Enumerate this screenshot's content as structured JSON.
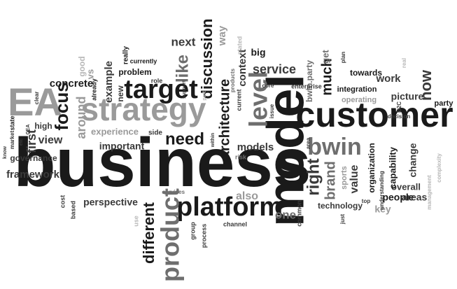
{
  "palette": {
    "black": "#1a1a1a",
    "dark": "#3a3a3a",
    "mid": "#6e6e6e",
    "light": "#9a9a9a",
    "pale": "#b8b8b8"
  },
  "words": [
    {
      "text": "business",
      "weight": 100,
      "tone": "black",
      "dir": "h"
    },
    {
      "text": "customer",
      "weight": 70,
      "tone": "black",
      "dir": "h"
    },
    {
      "text": "model",
      "weight": 72,
      "tone": "black",
      "dir": "v"
    },
    {
      "text": "EA",
      "weight": 58,
      "tone": "light",
      "dir": "h"
    },
    {
      "text": "strategy",
      "weight": 48,
      "tone": "light",
      "dir": "h"
    },
    {
      "text": "target",
      "weight": 40,
      "tone": "black",
      "dir": "h"
    },
    {
      "text": "platform",
      "weight": 40,
      "tone": "black",
      "dir": "h"
    },
    {
      "text": "product",
      "weight": 38,
      "tone": "mid",
      "dir": "v"
    },
    {
      "text": "level",
      "weight": 38,
      "tone": "mid",
      "dir": "v"
    },
    {
      "text": "bwin",
      "weight": 34,
      "tone": "mid",
      "dir": "h"
    },
    {
      "text": "focus",
      "weight": 28,
      "tone": "black",
      "dir": "v"
    },
    {
      "text": "need",
      "weight": 26,
      "tone": "black",
      "dir": "h"
    },
    {
      "text": "architecture",
      "weight": 22,
      "tone": "black",
      "dir": "v"
    },
    {
      "text": "discussion",
      "weight": 22,
      "tone": "black",
      "dir": "v"
    },
    {
      "text": "like",
      "weight": 26,
      "tone": "mid",
      "dir": "v"
    },
    {
      "text": "different",
      "weight": 24,
      "tone": "black",
      "dir": "v"
    },
    {
      "text": "right",
      "weight": 24,
      "tone": "dark",
      "dir": "v"
    },
    {
      "text": "much",
      "weight": 20,
      "tone": "black",
      "dir": "v"
    },
    {
      "text": "now",
      "weight": 22,
      "tone": "dark",
      "dir": "v"
    },
    {
      "text": "brand",
      "weight": 20,
      "tone": "mid",
      "dir": "v"
    },
    {
      "text": "service",
      "weight": 18,
      "tone": "dark",
      "dir": "h"
    },
    {
      "text": "around",
      "weight": 20,
      "tone": "light",
      "dir": "v"
    },
    {
      "text": "first",
      "weight": 20,
      "tone": "dark",
      "dir": "v"
    },
    {
      "text": "next",
      "weight": 18,
      "tone": "dark",
      "dir": "h"
    },
    {
      "text": "also",
      "weight": 18,
      "tone": "light",
      "dir": "h"
    },
    {
      "text": "one",
      "weight": 18,
      "tone": "mid",
      "dir": "h"
    },
    {
      "text": "way",
      "weight": 16,
      "tone": "light",
      "dir": "v"
    },
    {
      "text": "context",
      "weight": 16,
      "tone": "dark",
      "dir": "v"
    },
    {
      "text": "view",
      "weight": 16,
      "tone": "dark",
      "dir": "h"
    },
    {
      "text": "framework",
      "weight": 16,
      "tone": "dark",
      "dir": "h"
    },
    {
      "text": "perspective",
      "weight": 14,
      "tone": "dark",
      "dir": "h"
    },
    {
      "text": "example",
      "weight": 16,
      "tone": "dark",
      "dir": "v"
    },
    {
      "text": "models",
      "weight": 16,
      "tone": "dark",
      "dir": "h"
    },
    {
      "text": "value",
      "weight": 16,
      "tone": "dark",
      "dir": "v"
    },
    {
      "text": "work",
      "weight": 15,
      "tone": "dark",
      "dir": "h"
    },
    {
      "text": "big",
      "weight": 15,
      "tone": "black",
      "dir": "h"
    },
    {
      "text": "concrete",
      "weight": 15,
      "tone": "black",
      "dir": "h"
    },
    {
      "text": "important",
      "weight": 14,
      "tone": "dark",
      "dir": "h"
    },
    {
      "text": "experience",
      "weight": 13,
      "tone": "light",
      "dir": "h"
    },
    {
      "text": "people",
      "weight": 14,
      "tone": "black",
      "dir": "h"
    },
    {
      "text": "picture",
      "weight": 14,
      "tone": "dark",
      "dir": "h"
    },
    {
      "text": "change",
      "weight": 14,
      "tone": "dark",
      "dir": "v"
    },
    {
      "text": "key",
      "weight": 14,
      "tone": "light",
      "dir": "h"
    },
    {
      "text": "areas",
      "weight": 14,
      "tone": "dark",
      "dir": "h"
    },
    {
      "text": "overall",
      "weight": 13,
      "tone": "dark",
      "dir": "h"
    },
    {
      "text": "capability",
      "weight": 13,
      "tone": "black",
      "dir": "v"
    },
    {
      "text": "organization",
      "weight": 12,
      "tone": "black",
      "dir": "v"
    },
    {
      "text": "problem",
      "weight": 12,
      "tone": "black",
      "dir": "h"
    },
    {
      "text": "towards",
      "weight": 12,
      "tone": "black",
      "dir": "h"
    },
    {
      "text": "get",
      "weight": 14,
      "tone": "mid",
      "dir": "v"
    },
    {
      "text": "governance",
      "weight": 12,
      "tone": "dark",
      "dir": "h"
    },
    {
      "text": "technology",
      "weight": 12,
      "tone": "dark",
      "dir": "h"
    },
    {
      "text": "bwin.party",
      "weight": 13,
      "tone": "mid",
      "dir": "v"
    },
    {
      "text": "high",
      "weight": 12,
      "tone": "dark",
      "dir": "h"
    },
    {
      "text": "vs",
      "weight": 14,
      "tone": "light",
      "dir": "v"
    },
    {
      "text": "new",
      "weight": 13,
      "tone": "dark",
      "dir": "v"
    },
    {
      "text": "integration",
      "weight": 11,
      "tone": "black",
      "dir": "h"
    },
    {
      "text": "operating",
      "weight": 11,
      "tone": "light",
      "dir": "h"
    },
    {
      "text": "party",
      "weight": 11,
      "tone": "black",
      "dir": "h"
    },
    {
      "text": "sports",
      "weight": 11,
      "tone": "light",
      "dir": "v"
    },
    {
      "text": "good",
      "weight": 12,
      "tone": "pale",
      "dir": "v"
    },
    {
      "text": "really",
      "weight": 10,
      "tone": "black",
      "dir": "v"
    },
    {
      "text": "currently",
      "weight": 9,
      "tone": "black",
      "dir": "h"
    },
    {
      "text": "role",
      "weight": 9,
      "tone": "dark",
      "dir": "h"
    },
    {
      "text": "state",
      "weight": 9,
      "tone": "black",
      "dir": "v"
    },
    {
      "text": "already",
      "weight": 9,
      "tone": "black",
      "dir": "v"
    },
    {
      "text": "enterprise",
      "weight": 9,
      "tone": "dark",
      "dir": "h"
    },
    {
      "text": "B2C",
      "weight": 8,
      "tone": "dark",
      "dir": "v"
    },
    {
      "text": "decision",
      "weight": 8,
      "tone": "dark",
      "dir": "h"
    },
    {
      "text": "top",
      "weight": 8,
      "tone": "dark",
      "dir": "h"
    },
    {
      "text": "side",
      "weight": 10,
      "tone": "dark",
      "dir": "h"
    },
    {
      "text": "stated",
      "weight": 9,
      "tone": "pale",
      "dir": "v"
    },
    {
      "text": "products",
      "weight": 8,
      "tone": "mid",
      "dir": "v"
    },
    {
      "text": "current",
      "weight": 9,
      "tone": "dark",
      "dir": "v"
    },
    {
      "text": "core",
      "weight": 8,
      "tone": "dark",
      "dir": "h"
    },
    {
      "text": "issue",
      "weight": 8,
      "tone": "dark",
      "dir": "v"
    },
    {
      "text": "risk",
      "weight": 9,
      "tone": "mid",
      "dir": "h"
    },
    {
      "text": "process",
      "weight": 9,
      "tone": "dark",
      "dir": "v"
    },
    {
      "text": "group",
      "weight": 9,
      "tone": "dark",
      "dir": "v"
    },
    {
      "text": "channel",
      "weight": 9,
      "tone": "dark",
      "dir": "h"
    },
    {
      "text": "common",
      "weight": 9,
      "tone": "dark",
      "dir": "v"
    },
    {
      "text": "understanding",
      "weight": 8,
      "tone": "dark",
      "dir": "v"
    },
    {
      "text": "management",
      "weight": 8,
      "tone": "pale",
      "dir": "v"
    },
    {
      "text": "complexity",
      "weight": 8,
      "tone": "pale",
      "dir": "v"
    },
    {
      "text": "plan",
      "weight": 8,
      "tone": "dark",
      "dir": "v"
    },
    {
      "text": "real",
      "weight": 8,
      "tone": "pale",
      "dir": "v"
    },
    {
      "text": "area",
      "weight": 8,
      "tone": "dark",
      "dir": "v"
    },
    {
      "text": "based",
      "weight": 9,
      "tone": "dark",
      "dir": "v"
    },
    {
      "text": "cost",
      "weight": 9,
      "tone": "dark",
      "dir": "v"
    },
    {
      "text": "use",
      "weight": 9,
      "tone": "pale",
      "dir": "v"
    },
    {
      "text": "services",
      "weight": 8,
      "tone": "mid",
      "dir": "h"
    },
    {
      "text": "just",
      "weight": 8,
      "tone": "dark",
      "dir": "v"
    },
    {
      "text": "within",
      "weight": 7,
      "tone": "dark",
      "dir": "v"
    },
    {
      "text": "part",
      "weight": 7,
      "tone": "pale",
      "dir": "v"
    },
    {
      "text": "support",
      "weight": 7,
      "tone": "dark",
      "dir": "v"
    },
    {
      "text": "clear",
      "weight": 8,
      "tone": "dark",
      "dir": "v"
    },
    {
      "text": "market",
      "weight": 8,
      "tone": "dark",
      "dir": "v"
    },
    {
      "text": "know",
      "weight": 7,
      "tone": "dark",
      "dir": "v"
    },
    {
      "text": "etc",
      "weight": 7,
      "tone": "dark",
      "dir": "v"
    },
    {
      "text": "CEA",
      "weight": 7,
      "tone": "dark",
      "dir": "v"
    }
  ]
}
